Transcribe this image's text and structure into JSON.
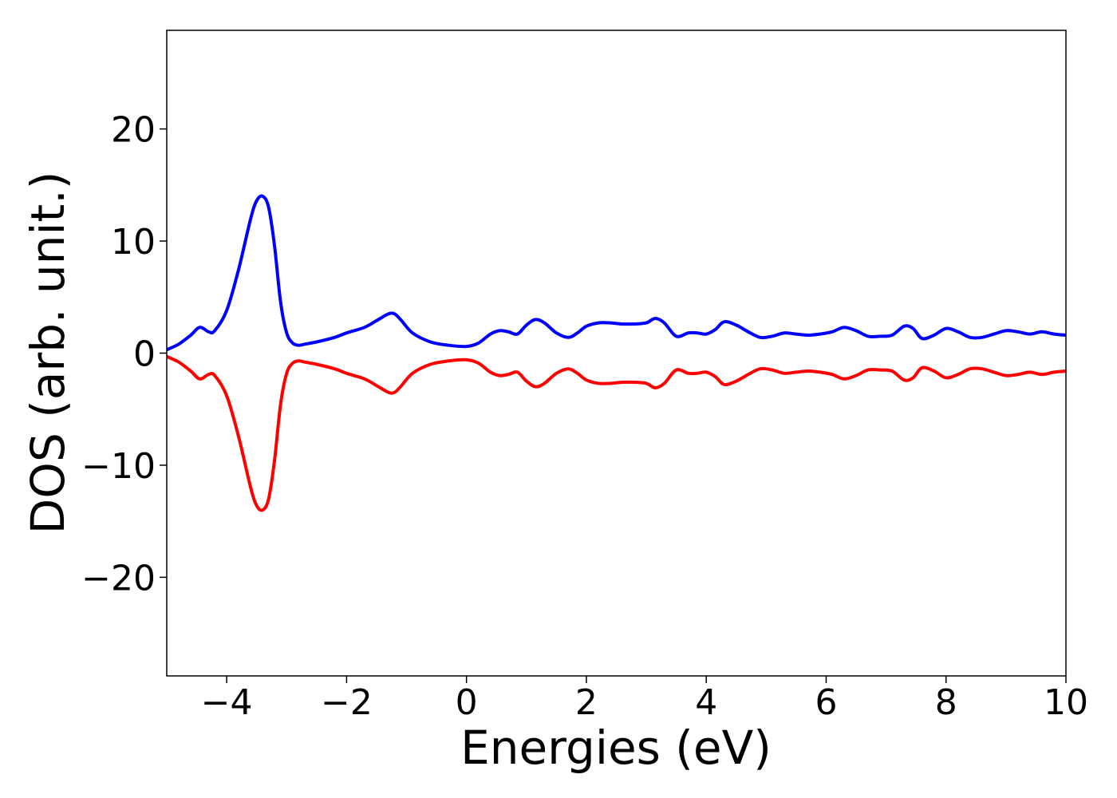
{
  "chart_data": {
    "type": "line",
    "title": "",
    "xlabel": "Energies (eV)",
    "ylabel": "DOS (arb. unit.)",
    "xlim": [
      -5,
      10
    ],
    "ylim": [
      -28.8,
      28.8
    ],
    "xticks": [
      -4,
      -2,
      0,
      2,
      4,
      6,
      8,
      10
    ],
    "xtick_labels": [
      "−4",
      "−2",
      "0",
      "2",
      "4",
      "6",
      "8",
      "10"
    ],
    "yticks": [
      -20,
      -10,
      0,
      10,
      20
    ],
    "ytick_labels": [
      "−20",
      "−10",
      "0",
      "10",
      "20"
    ],
    "grid": false,
    "legend": "none",
    "series": [
      {
        "color": "#0000ff",
        "x": [
          -5.0,
          -4.8,
          -4.6,
          -4.45,
          -4.3,
          -4.2,
          -4.0,
          -3.8,
          -3.6,
          -3.5,
          -3.4,
          -3.3,
          -3.2,
          -3.1,
          -3.0,
          -2.9,
          -2.8,
          -2.7,
          -2.5,
          -2.2,
          -2.0,
          -1.7,
          -1.5,
          -1.3,
          -1.2,
          -1.1,
          -0.9,
          -0.6,
          -0.3,
          0.0,
          0.2,
          0.4,
          0.55,
          0.7,
          0.85,
          1.0,
          1.15,
          1.3,
          1.5,
          1.7,
          1.85,
          2.0,
          2.2,
          2.4,
          2.6,
          2.8,
          3.0,
          3.15,
          3.3,
          3.5,
          3.7,
          3.85,
          4.0,
          4.15,
          4.3,
          4.5,
          4.7,
          4.9,
          5.1,
          5.3,
          5.5,
          5.7,
          5.9,
          6.1,
          6.3,
          6.5,
          6.7,
          6.9,
          7.1,
          7.3,
          7.45,
          7.6,
          7.8,
          8.0,
          8.2,
          8.4,
          8.6,
          8.8,
          9.0,
          9.2,
          9.4,
          9.6,
          9.8,
          10.0
        ],
        "y": [
          0.3,
          0.8,
          1.6,
          2.3,
          1.9,
          2.0,
          3.8,
          7.5,
          12.0,
          13.6,
          14.0,
          13.0,
          9.5,
          4.5,
          1.8,
          0.9,
          0.7,
          0.8,
          1.0,
          1.4,
          1.8,
          2.3,
          2.9,
          3.5,
          3.5,
          3.0,
          1.8,
          1.0,
          0.7,
          0.6,
          0.9,
          1.7,
          2.0,
          1.9,
          1.7,
          2.5,
          3.0,
          2.7,
          1.8,
          1.4,
          1.8,
          2.4,
          2.7,
          2.7,
          2.6,
          2.6,
          2.7,
          3.1,
          2.7,
          1.5,
          1.8,
          1.8,
          1.7,
          2.1,
          2.8,
          2.5,
          1.9,
          1.4,
          1.5,
          1.8,
          1.7,
          1.6,
          1.7,
          1.9,
          2.3,
          2.0,
          1.5,
          1.5,
          1.6,
          2.4,
          2.2,
          1.3,
          1.6,
          2.2,
          1.9,
          1.4,
          1.4,
          1.7,
          2.0,
          1.9,
          1.7,
          1.9,
          1.7,
          1.6
        ]
      },
      {
        "color": "#ff0000",
        "x": [
          -5.0,
          -4.8,
          -4.6,
          -4.45,
          -4.3,
          -4.2,
          -4.0,
          -3.8,
          -3.6,
          -3.5,
          -3.4,
          -3.3,
          -3.2,
          -3.1,
          -3.0,
          -2.9,
          -2.8,
          -2.7,
          -2.5,
          -2.2,
          -2.0,
          -1.7,
          -1.5,
          -1.3,
          -1.2,
          -1.1,
          -0.9,
          -0.6,
          -0.3,
          0.0,
          0.2,
          0.4,
          0.55,
          0.7,
          0.85,
          1.0,
          1.15,
          1.3,
          1.5,
          1.7,
          1.85,
          2.0,
          2.2,
          2.4,
          2.6,
          2.8,
          3.0,
          3.15,
          3.3,
          3.5,
          3.7,
          3.85,
          4.0,
          4.15,
          4.3,
          4.5,
          4.7,
          4.9,
          5.1,
          5.3,
          5.5,
          5.7,
          5.9,
          6.1,
          6.3,
          6.5,
          6.7,
          6.9,
          7.1,
          7.3,
          7.45,
          7.6,
          7.8,
          8.0,
          8.2,
          8.4,
          8.6,
          8.8,
          9.0,
          9.2,
          9.4,
          9.6,
          9.8,
          10.0
        ],
        "y": [
          -0.3,
          -0.8,
          -1.6,
          -2.3,
          -1.9,
          -2.0,
          -3.8,
          -7.5,
          -12.0,
          -13.6,
          -14.0,
          -13.0,
          -9.5,
          -4.5,
          -1.8,
          -0.9,
          -0.7,
          -0.8,
          -1.0,
          -1.4,
          -1.8,
          -2.3,
          -2.9,
          -3.5,
          -3.5,
          -3.0,
          -1.8,
          -1.0,
          -0.7,
          -0.6,
          -0.9,
          -1.7,
          -2.0,
          -1.9,
          -1.7,
          -2.5,
          -3.0,
          -2.7,
          -1.8,
          -1.4,
          -1.8,
          -2.4,
          -2.7,
          -2.7,
          -2.6,
          -2.6,
          -2.7,
          -3.1,
          -2.7,
          -1.5,
          -1.8,
          -1.8,
          -1.7,
          -2.1,
          -2.8,
          -2.5,
          -1.9,
          -1.4,
          -1.5,
          -1.8,
          -1.7,
          -1.6,
          -1.7,
          -1.9,
          -2.3,
          -2.0,
          -1.5,
          -1.5,
          -1.6,
          -2.4,
          -2.2,
          -1.3,
          -1.6,
          -2.2,
          -1.9,
          -1.4,
          -1.4,
          -1.7,
          -2.0,
          -1.9,
          -1.7,
          -1.9,
          -1.7,
          -1.6
        ]
      }
    ]
  }
}
